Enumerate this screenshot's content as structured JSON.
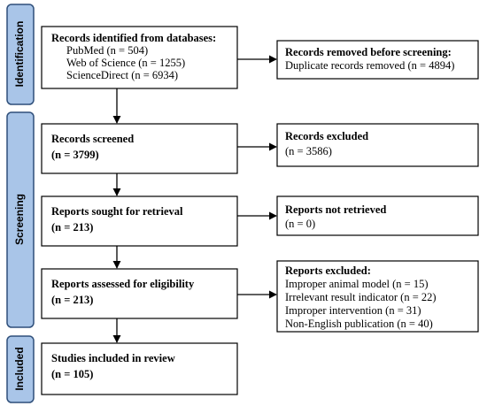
{
  "phases": [
    "Identification",
    "Screening",
    "Included"
  ],
  "main_boxes": [
    {
      "title": "Records identified from databases:",
      "lines": [
        "PubMed (n = 504)",
        "Web of Science (n = 1255)",
        "ScienceDirect (n = 6934)"
      ]
    },
    {
      "title": "Records screened",
      "lines": [
        "(n = 3799)"
      ]
    },
    {
      "title": "Reports sought for retrieval",
      "lines": [
        "(n = 213)"
      ]
    },
    {
      "title": "Reports assessed for eligibility",
      "lines": [
        "(n = 213)"
      ]
    },
    {
      "title": "Studies included in review",
      "lines": [
        "(n = 105)"
      ]
    }
  ],
  "side_boxes": [
    {
      "title": "Records removed before screening:",
      "lines": [
        "Duplicate records removed (n = 4894)"
      ]
    },
    {
      "title": "Records excluded",
      "lines": [
        "(n = 3586)"
      ]
    },
    {
      "title": "Reports not retrieved",
      "lines": [
        "(n = 0)"
      ]
    },
    {
      "title": "Reports excluded:",
      "lines": [
        "Improper animal model (n = 15)",
        "Irrelevant result indicator (n = 22)",
        "Improper intervention (n = 31)",
        "Non-English publication (n = 40)"
      ]
    }
  ]
}
